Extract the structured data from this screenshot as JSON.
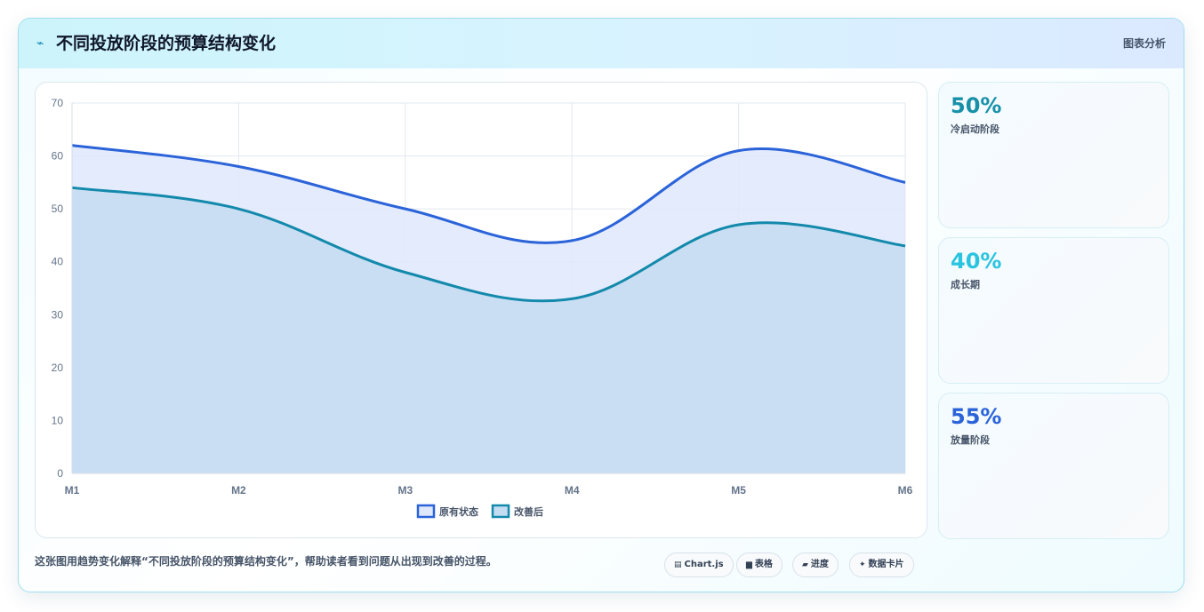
{
  "header": {
    "icon": "trend-icon",
    "title": "不同投放阶段的预算结构变化",
    "subtitle": "图表分析"
  },
  "chart_data": {
    "type": "area",
    "categories": [
      "M1",
      "M2",
      "M3",
      "M4",
      "M5",
      "M6"
    ],
    "series": [
      {
        "name": "原有状态",
        "values": [
          62,
          58,
          50,
          44,
          61,
          55
        ],
        "color": "#2b63d9",
        "fill": "#dfe8fb"
      },
      {
        "name": "改善后",
        "values": [
          54,
          50,
          38,
          33,
          47,
          43
        ],
        "color": "#1389ab",
        "fill": "#c4dcf1"
      }
    ],
    "ylim": [
      0,
      70
    ],
    "yticks": [
      0,
      10,
      20,
      30,
      40,
      50,
      60,
      70
    ],
    "grid": true,
    "legend": "bottom",
    "title": "",
    "xlabel": "",
    "ylabel": ""
  },
  "stats": [
    {
      "value": "50%",
      "label": "冷启动阶段",
      "color": "#1790a8"
    },
    {
      "value": "40%",
      "label": "成长期",
      "color": "#29c4df"
    },
    {
      "value": "55%",
      "label": "放量阶段",
      "color": "#2b63d9"
    }
  ],
  "footer": {
    "caption": "这张图用趋势变化解释“不同投放阶段的预算结构变化”，帮助读者看到问题从出现到改善的过程。",
    "tags": [
      {
        "icon": "chart-icon",
        "label": "Chart.js"
      },
      {
        "icon": "table-icon",
        "label": "表格"
      },
      {
        "icon": "progress-icon",
        "label": "进度"
      },
      {
        "icon": "sparkle-icon",
        "label": "数据卡片"
      }
    ]
  }
}
